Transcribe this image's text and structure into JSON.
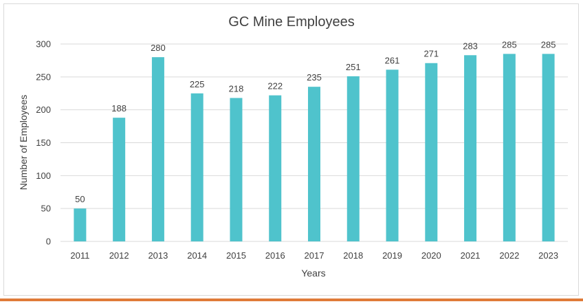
{
  "chart_data": {
    "type": "bar",
    "title": "GC Mine Employees",
    "xlabel": "Years",
    "ylabel": "Number of Employees",
    "categories": [
      "2011",
      "2012",
      "2013",
      "2014",
      "2015",
      "2016",
      "2017",
      "2018",
      "2019",
      "2020",
      "2021",
      "2022",
      "2023"
    ],
    "values": [
      50,
      188,
      280,
      225,
      218,
      222,
      235,
      251,
      261,
      271,
      283,
      285,
      285
    ],
    "ylim": [
      0,
      300
    ],
    "yticks": [
      0,
      50,
      100,
      150,
      200,
      250,
      300
    ],
    "grid": true,
    "legend": "none",
    "bar_color": "#4FC3CC",
    "grid_color": "#d9d9d9",
    "accent_rule_color": "#E07B39"
  }
}
